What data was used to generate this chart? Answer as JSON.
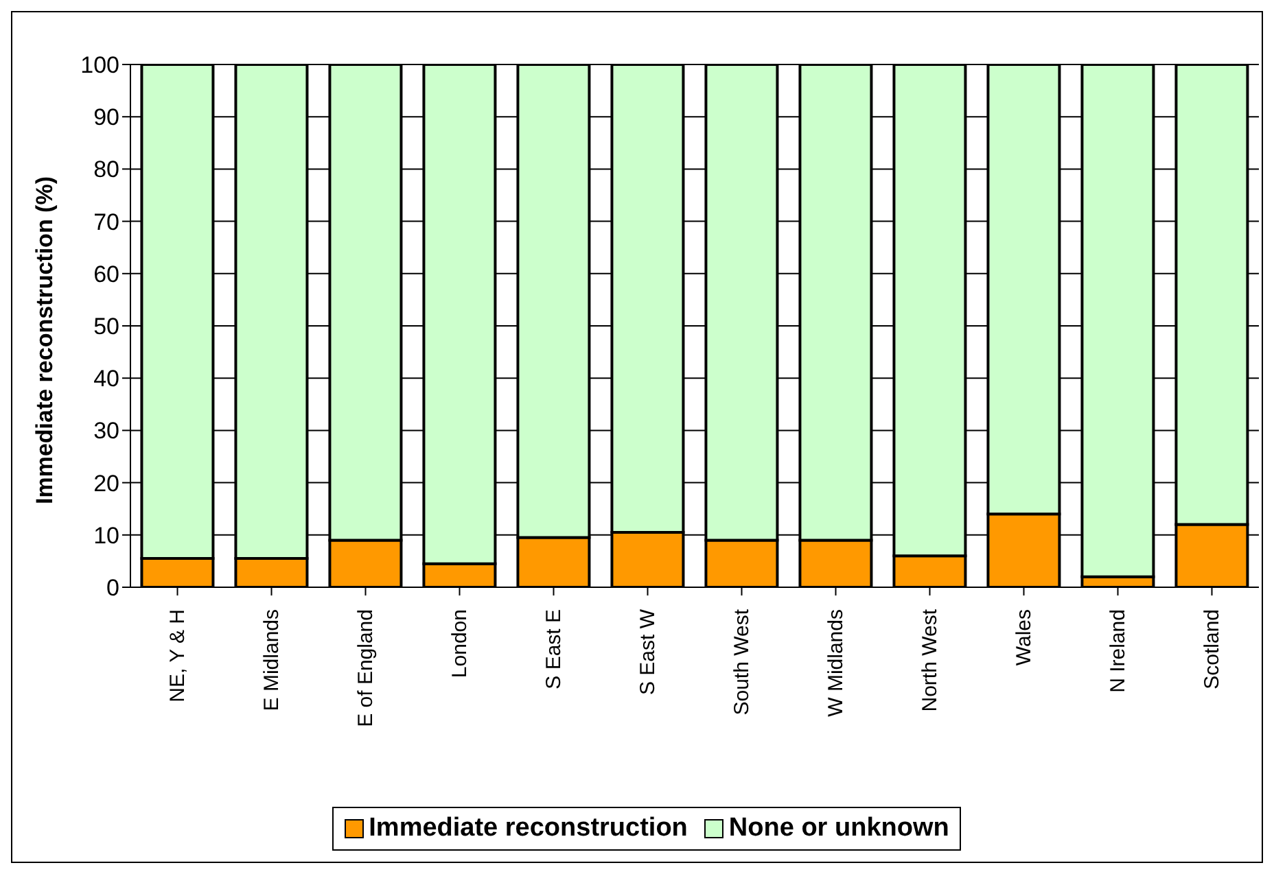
{
  "chart_data": {
    "type": "bar",
    "stacked": true,
    "ylabel": "Immediate reconstruction (%)",
    "categories": [
      "NE, Y & H",
      "E Midlands",
      "E of England",
      "London",
      "S East E",
      "S East W",
      "South West",
      "W Midlands",
      "North West",
      "Wales",
      "N Ireland",
      "Scotland"
    ],
    "series": [
      {
        "name": "Immediate reconstruction",
        "color": "#ff9900",
        "values": [
          5.5,
          5.5,
          9,
          4.5,
          9.5,
          10.5,
          9,
          9,
          6,
          14,
          2,
          12
        ]
      },
      {
        "name": "None or unknown",
        "color": "#ccffcc",
        "values": [
          94.5,
          94.5,
          91,
          95.5,
          90.5,
          89.5,
          91,
          91,
          94,
          86,
          98,
          88
        ]
      }
    ],
    "ylim": [
      0,
      100
    ],
    "yticks": [
      0,
      10,
      20,
      30,
      40,
      50,
      60,
      70,
      80,
      90,
      100
    ],
    "grid": "y",
    "legend": "bottom"
  }
}
